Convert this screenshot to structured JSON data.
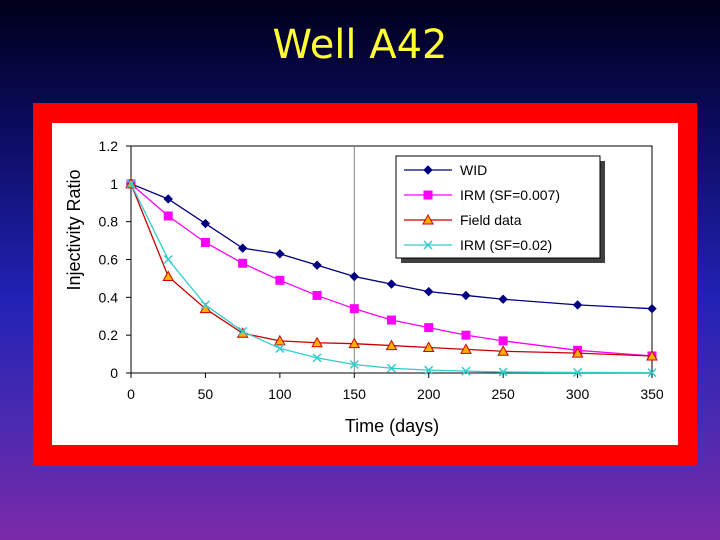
{
  "slide": {
    "title": "Well A42"
  },
  "colors": {
    "frame": "#ff0000",
    "title": "#ffff33"
  },
  "chart_data": {
    "type": "line",
    "title": "",
    "xlabel": "Time (days)",
    "ylabel": "Injectivity Ratio",
    "xlim": [
      0,
      350
    ],
    "ylim": [
      0,
      1.2
    ],
    "x_ticks": [
      0,
      50,
      100,
      150,
      200,
      250,
      300,
      350
    ],
    "y_ticks": [
      0,
      0.2,
      0.4,
      0.6,
      0.8,
      1,
      1.2
    ],
    "y_tick_labels": [
      "0",
      "0.2",
      "0.4",
      "0.6",
      "0.8",
      "1",
      "1.2"
    ],
    "grid": false,
    "reference_line_x": 150,
    "legend_position": "top-right",
    "series": [
      {
        "name": "WID",
        "color": "#000080",
        "marker": "diamond",
        "x": [
          0,
          25,
          50,
          75,
          100,
          125,
          150,
          175,
          200,
          225,
          250,
          300,
          350
        ],
        "y": [
          1.0,
          0.92,
          0.79,
          0.66,
          0.63,
          0.57,
          0.51,
          0.47,
          0.43,
          0.41,
          0.39,
          0.36,
          0.34
        ]
      },
      {
        "name": "IRM (SF=0.007)",
        "color": "#ff00ff",
        "marker": "square",
        "x": [
          0,
          25,
          50,
          75,
          100,
          125,
          150,
          175,
          200,
          225,
          250,
          300,
          350
        ],
        "y": [
          1.0,
          0.83,
          0.69,
          0.58,
          0.49,
          0.41,
          0.34,
          0.28,
          0.24,
          0.2,
          0.17,
          0.12,
          0.09
        ]
      },
      {
        "name": "Field data",
        "color": "#cc0000",
        "marker": "triangle",
        "x": [
          0,
          25,
          50,
          75,
          100,
          125,
          150,
          175,
          200,
          225,
          250,
          300,
          350
        ],
        "y": [
          1.0,
          0.51,
          0.34,
          0.21,
          0.17,
          0.16,
          0.155,
          0.145,
          0.135,
          0.125,
          0.115,
          0.105,
          0.09
        ]
      },
      {
        "name": "IRM (SF=0.02)",
        "color": "#33cccc",
        "marker": "x",
        "x": [
          0,
          25,
          50,
          75,
          100,
          125,
          150,
          175,
          200,
          225,
          250,
          300,
          350
        ],
        "y": [
          1.0,
          0.6,
          0.36,
          0.22,
          0.13,
          0.08,
          0.045,
          0.025,
          0.015,
          0.01,
          0.005,
          0.003,
          0.002
        ]
      }
    ]
  }
}
